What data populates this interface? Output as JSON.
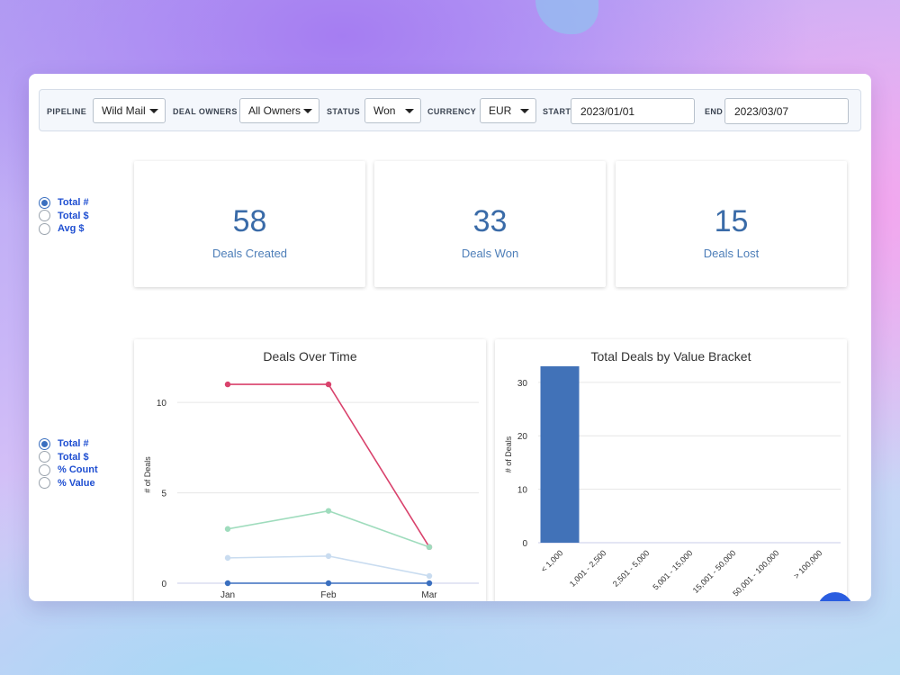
{
  "filters": {
    "pipeline": {
      "label": "PIPELINE",
      "value": "Wild Mail"
    },
    "deal_owners": {
      "label": "DEAL OWNERS",
      "value": "All Owners"
    },
    "status": {
      "label": "STATUS",
      "value": "Won"
    },
    "currency": {
      "label": "CURRENCY",
      "value": "EUR"
    },
    "start": {
      "label": "START",
      "value": "2023/01/01"
    },
    "end": {
      "label": "END",
      "value": "2023/03/07"
    }
  },
  "stat_metric_options": [
    {
      "label": "Total #",
      "checked": true
    },
    {
      "label": "Total $",
      "checked": false
    },
    {
      "label": "Avg $",
      "checked": false
    }
  ],
  "stats": [
    {
      "value": "58",
      "label": "Deals Created"
    },
    {
      "value": "33",
      "label": "Deals Won"
    },
    {
      "value": "15",
      "label": "Deals Lost"
    }
  ],
  "chart_metric_options": [
    {
      "label": "Total #",
      "checked": true
    },
    {
      "label": "Total $",
      "checked": false
    },
    {
      "label": "% Count",
      "checked": false
    },
    {
      "label": "% Value",
      "checked": false
    }
  ],
  "chart_data": [
    {
      "type": "line",
      "title": "Deals Over Time",
      "xlabel": "",
      "ylabel": "# of Deals",
      "categories": [
        "Jan",
        "Feb",
        "Mar"
      ],
      "yticks": [
        0,
        5,
        10
      ],
      "ylim": [
        0,
        12
      ],
      "grid": true,
      "series": [
        {
          "color": "#d9426c",
          "values": [
            11,
            11,
            2
          ]
        },
        {
          "color": "#9fdcbd",
          "values": [
            3,
            4,
            2
          ]
        },
        {
          "color": "#c9dcf0",
          "values": [
            1.4,
            1.5,
            0.4
          ]
        },
        {
          "color": "#3a6fbf",
          "values": [
            0,
            0,
            0
          ]
        }
      ]
    },
    {
      "type": "bar",
      "title": "Total Deals by Value Bracket",
      "xlabel": "",
      "ylabel": "# of Deals",
      "categories": [
        "< 1,000",
        "1,001 - 2,500",
        "2,501 - 5,000",
        "5,001 - 15,000",
        "15,001 - 50,000",
        "50,001 - 100,000",
        "> 100,000"
      ],
      "values": [
        33,
        0,
        0,
        0,
        0,
        0,
        0
      ],
      "yticks": [
        0,
        10,
        20,
        30
      ],
      "ylim": [
        0,
        33
      ],
      "grid": true,
      "color": "#4172b8"
    }
  ]
}
